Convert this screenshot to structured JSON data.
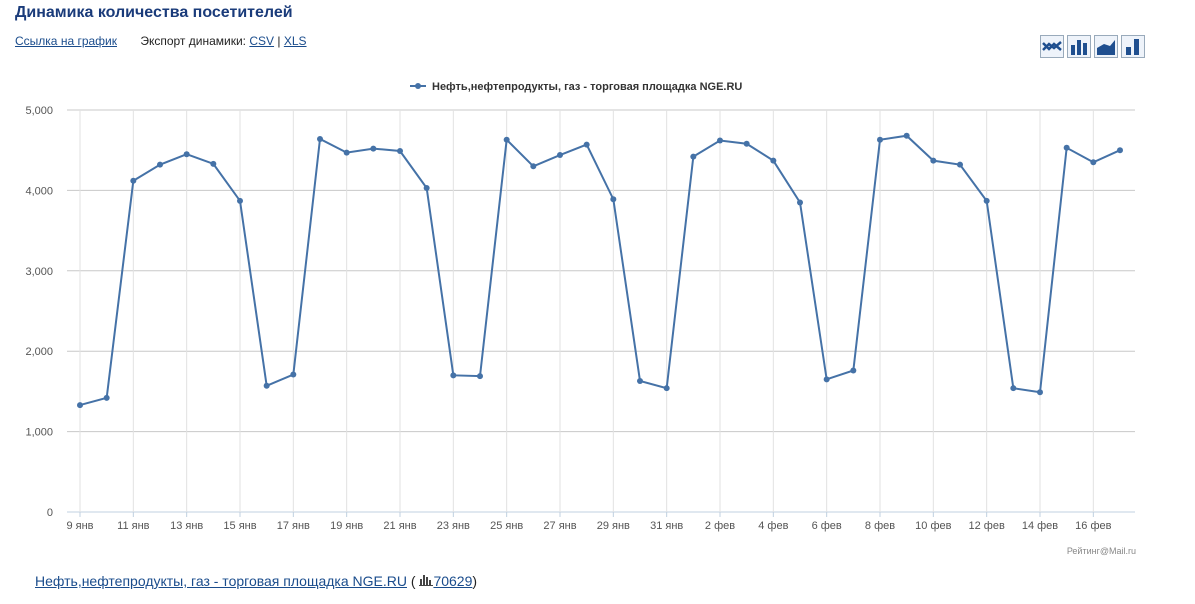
{
  "header": {
    "title": "Динамика количества посетителей",
    "chart_link": "Ссылка на график",
    "export_label": "Экспорт динамики:",
    "csv": "CSV",
    "separator": "|",
    "xls": "XLS"
  },
  "chart_data": {
    "type": "line",
    "categories": [
      "9 янв",
      null,
      "11 янв",
      null,
      "13 янв",
      null,
      "15 янв",
      null,
      "17 янв",
      null,
      "19 янв",
      null,
      "21 янв",
      null,
      "23 янв",
      null,
      "25 янв",
      null,
      "27 янв",
      null,
      "29 янв",
      null,
      "31 янв",
      null,
      "2 фев",
      null,
      "4 фев",
      null,
      "6 фев",
      null,
      "8 фев",
      null,
      "10 фев",
      null,
      "12 фев",
      null,
      "14 фев",
      null,
      "16 фев",
      null
    ],
    "series": [
      {
        "name": "Нефть,нефтепродукты, газ - торговая площадка NGE.RU",
        "color": "#4572a7",
        "values": [
          1330,
          1420,
          4120,
          4320,
          4450,
          4330,
          3870,
          1570,
          1710,
          4640,
          4470,
          4520,
          4490,
          4030,
          1700,
          1690,
          4630,
          4300,
          4440,
          4570,
          3890,
          1630,
          1540,
          4420,
          4620,
          4580,
          4370,
          3850,
          1650,
          1760,
          4630,
          4680,
          4370,
          4320,
          3870,
          1540,
          1490,
          4530,
          4350,
          4500
        ]
      }
    ],
    "ylim": [
      0,
      5000
    ],
    "yticks": [
      0,
      {
        "value": 1000,
        "label": "1,000"
      },
      {
        "value": 2000,
        "label": "2,000"
      },
      {
        "value": 3000,
        "label": "3,000"
      },
      {
        "value": 4000,
        "label": "4,000"
      },
      {
        "value": 5000,
        "label": "5,000"
      }
    ],
    "grid": true,
    "legend": "top",
    "credit": "Рейтинг@Mail.ru"
  },
  "footer": {
    "site": "Нефть,нефтепродукты, газ - торговая площадка NGE.RU",
    "open": "(",
    "count": "70629",
    "close": ")"
  }
}
